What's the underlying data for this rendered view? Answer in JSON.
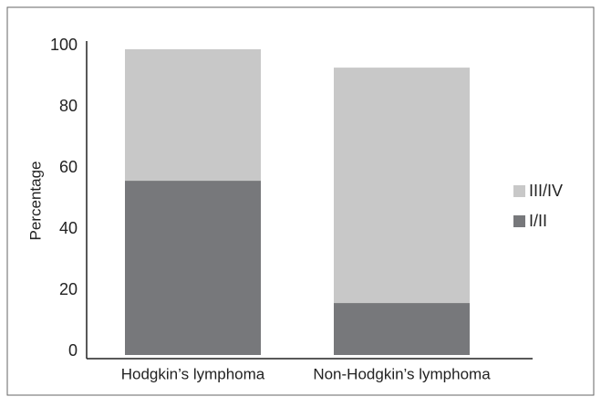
{
  "chart_data": {
    "type": "stacked_bar",
    "y_label": "Percentage",
    "categories": [
      "Hodgkin’s lymphoma",
      "Non-Hodgkin’s lymphoma"
    ],
    "series": [
      {
        "name": "I/II",
        "color": "#77787b",
        "values": [
          57,
          17
        ]
      },
      {
        "name": "III/IV",
        "color": "#c8c8c8",
        "values": [
          43,
          77
        ]
      }
    ],
    "ylim": [
      0,
      100
    ],
    "yticks": [
      0,
      20,
      40,
      60,
      80,
      100
    ],
    "legend": "right"
  }
}
